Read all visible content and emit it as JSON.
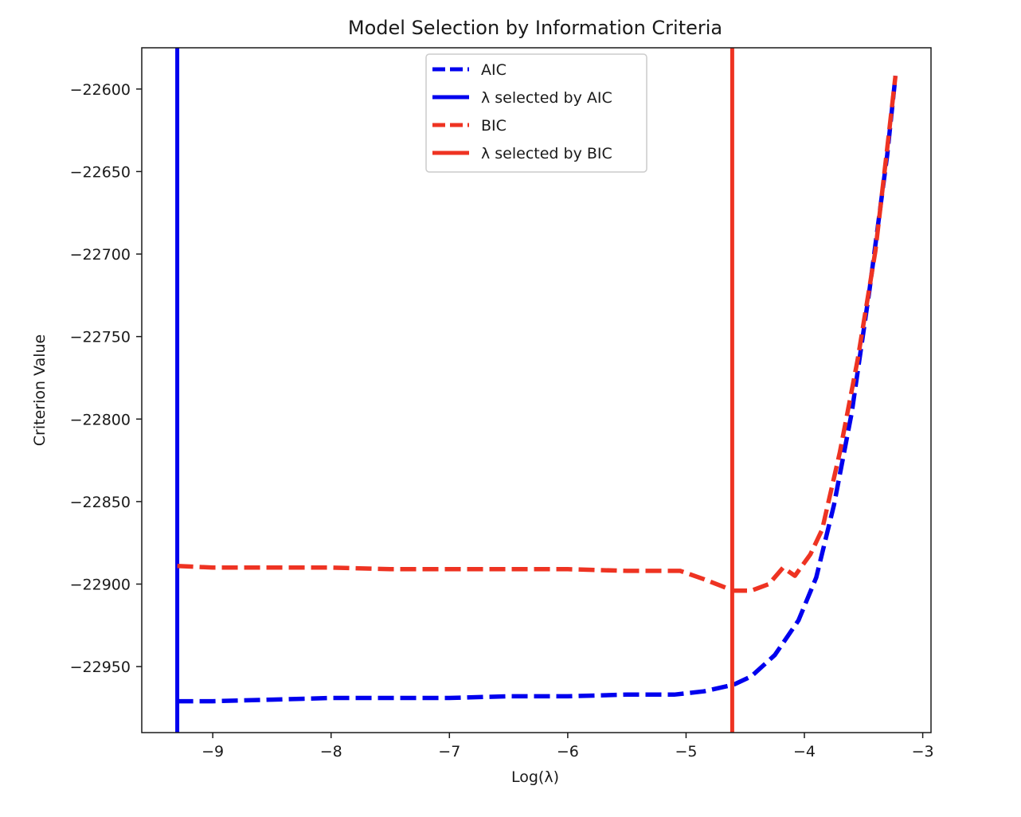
{
  "chart_data": {
    "type": "line",
    "title": "Model Selection by Information Criteria",
    "xlabel": "Log(λ)",
    "ylabel": "Criterion Value",
    "xlim": [
      -9.6,
      -2.93
    ],
    "ylim": [
      -22990,
      -22575
    ],
    "x_ticks": [
      {
        "value": -9,
        "label": "−9"
      },
      {
        "value": -8,
        "label": "−8"
      },
      {
        "value": -7,
        "label": "−7"
      },
      {
        "value": -6,
        "label": "−6"
      },
      {
        "value": -5,
        "label": "−5"
      },
      {
        "value": -4,
        "label": "−4"
      },
      {
        "value": -3,
        "label": "−3"
      }
    ],
    "y_ticks": [
      {
        "value": -22600,
        "label": "−22600"
      },
      {
        "value": -22650,
        "label": "−22650"
      },
      {
        "value": -22700,
        "label": "−22700"
      },
      {
        "value": -22750,
        "label": "−22750"
      },
      {
        "value": -22800,
        "label": "−22800"
      },
      {
        "value": -22850,
        "label": "−22850"
      },
      {
        "value": -22900,
        "label": "−22900"
      },
      {
        "value": -22950,
        "label": "−22950"
      }
    ],
    "grid": false,
    "legend_position": "top-center",
    "series": [
      {
        "name": "AIC",
        "style": "dashed",
        "color": "#0000ee",
        "x": [
          -9.3,
          -9.0,
          -8.5,
          -8.0,
          -7.5,
          -7.0,
          -6.5,
          -6.0,
          -5.5,
          -5.1,
          -4.85,
          -4.6,
          -4.45,
          -4.25,
          -4.05,
          -3.9,
          -3.75,
          -3.6,
          -3.45,
          -3.3,
          -3.23
        ],
        "y": [
          -22971,
          -22971,
          -22970,
          -22969,
          -22969,
          -22969,
          -22968,
          -22968,
          -22967,
          -22967,
          -22965,
          -22961,
          -22956,
          -22943,
          -22922,
          -22896,
          -22852,
          -22796,
          -22722,
          -22640,
          -22592
        ]
      },
      {
        "name": "λ selected by AIC",
        "style": "solid-vertical",
        "color": "#0000ee",
        "x": -9.3
      },
      {
        "name": "BIC",
        "style": "dashed",
        "color": "#ee3322",
        "x": [
          -9.3,
          -9.0,
          -8.5,
          -8.0,
          -7.5,
          -7.0,
          -6.5,
          -6.0,
          -5.5,
          -5.05,
          -4.85,
          -4.6,
          -4.45,
          -4.3,
          -4.18,
          -4.08,
          -3.95,
          -3.85,
          -3.7,
          -3.55,
          -3.4,
          -3.3,
          -3.23
        ],
        "y": [
          -22889,
          -22890,
          -22890,
          -22890,
          -22891,
          -22891,
          -22891,
          -22891,
          -22892,
          -22892,
          -22897,
          -22904,
          -22904,
          -22900,
          -22890,
          -22895,
          -22882,
          -22867,
          -22820,
          -22764,
          -22698,
          -22636,
          -22592
        ]
      },
      {
        "name": "λ selected by BIC",
        "style": "solid-vertical",
        "color": "#ee3322",
        "x": -4.61
      }
    ]
  }
}
